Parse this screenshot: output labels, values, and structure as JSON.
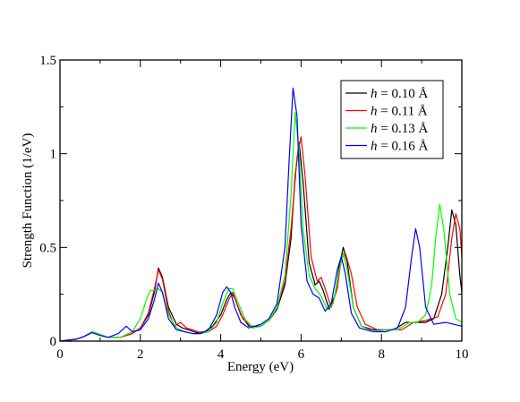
{
  "chart_data": {
    "type": "line",
    "title": "",
    "xlabel": "Energy (eV)",
    "ylabel": "Strength Function (1/eV)",
    "xlim": [
      0,
      10
    ],
    "ylim": [
      0,
      1.5
    ],
    "x_ticks": [
      "0",
      "2",
      "4",
      "6",
      "8",
      "10"
    ],
    "y_ticks": [
      "0",
      "0.5",
      "1",
      "1.5"
    ],
    "grid": false,
    "legend_position": "top-right",
    "series": [
      {
        "name": "h = 0.10 Å",
        "legend_var": "h",
        "legend_rest": " = 0.10 Å",
        "color": "#000000",
        "x": [
          0,
          0.4,
          0.6,
          0.8,
          1.0,
          1.2,
          1.5,
          1.8,
          2.0,
          2.2,
          2.35,
          2.45,
          2.55,
          2.7,
          2.9,
          3.05,
          3.2,
          3.4,
          3.6,
          3.8,
          4.0,
          4.15,
          4.25,
          4.35,
          4.5,
          4.7,
          5.0,
          5.2,
          5.4,
          5.6,
          5.75,
          5.85,
          5.95,
          6.05,
          6.2,
          6.35,
          6.45,
          6.55,
          6.7,
          6.85,
          6.95,
          7.05,
          7.15,
          7.3,
          7.5,
          7.8,
          8.0,
          8.3,
          8.6,
          8.85,
          9.1,
          9.3,
          9.5,
          9.65,
          9.75,
          9.85,
          9.95,
          10.0
        ],
        "y": [
          0.0,
          0.01,
          0.025,
          0.05,
          0.035,
          0.02,
          0.02,
          0.04,
          0.07,
          0.14,
          0.26,
          0.39,
          0.34,
          0.18,
          0.09,
          0.07,
          0.06,
          0.045,
          0.05,
          0.08,
          0.14,
          0.22,
          0.26,
          0.23,
          0.14,
          0.08,
          0.08,
          0.11,
          0.17,
          0.3,
          0.55,
          0.88,
          1.06,
          0.85,
          0.42,
          0.3,
          0.32,
          0.27,
          0.17,
          0.25,
          0.4,
          0.5,
          0.42,
          0.18,
          0.08,
          0.06,
          0.06,
          0.06,
          0.1,
          0.1,
          0.1,
          0.12,
          0.25,
          0.5,
          0.7,
          0.62,
          0.35,
          0.26
        ]
      },
      {
        "name": "h = 0.11 Å",
        "legend_var": "h",
        "legend_rest": " = 0.11 Å",
        "color": "#ff0000",
        "x": [
          0,
          0.4,
          0.6,
          0.8,
          1.0,
          1.2,
          1.5,
          1.8,
          2.0,
          2.2,
          2.35,
          2.45,
          2.55,
          2.7,
          2.85,
          3.0,
          3.15,
          3.3,
          3.5,
          3.7,
          3.9,
          4.05,
          4.2,
          4.3,
          4.4,
          4.55,
          4.8,
          5.0,
          5.2,
          5.4,
          5.6,
          5.75,
          5.9,
          6.0,
          6.1,
          6.25,
          6.4,
          6.5,
          6.6,
          6.75,
          6.9,
          7.0,
          7.1,
          7.25,
          7.4,
          7.6,
          7.9,
          8.2,
          8.5,
          8.8,
          9.1,
          9.4,
          9.6,
          9.75,
          9.85,
          9.95,
          10.0
        ],
        "y": [
          0.0,
          0.01,
          0.025,
          0.05,
          0.035,
          0.02,
          0.02,
          0.04,
          0.07,
          0.15,
          0.28,
          0.38,
          0.33,
          0.16,
          0.08,
          0.1,
          0.07,
          0.06,
          0.045,
          0.05,
          0.08,
          0.14,
          0.22,
          0.26,
          0.2,
          0.12,
          0.07,
          0.08,
          0.11,
          0.18,
          0.32,
          0.6,
          0.98,
          1.09,
          0.88,
          0.45,
          0.32,
          0.34,
          0.28,
          0.18,
          0.28,
          0.44,
          0.47,
          0.36,
          0.18,
          0.09,
          0.06,
          0.06,
          0.06,
          0.1,
          0.11,
          0.13,
          0.25,
          0.55,
          0.68,
          0.6,
          0.45
        ]
      },
      {
        "name": "h = 0.13 Å",
        "legend_var": "h",
        "legend_rest": " = 0.13 Å",
        "color": "#00ff00",
        "x": [
          0,
          0.4,
          0.6,
          0.8,
          1.0,
          1.2,
          1.5,
          1.8,
          2.0,
          2.15,
          2.25,
          2.35,
          2.45,
          2.55,
          2.7,
          2.9,
          3.1,
          3.3,
          3.5,
          3.7,
          3.9,
          4.05,
          4.2,
          4.3,
          4.4,
          4.6,
          4.8,
          5.0,
          5.2,
          5.4,
          5.6,
          5.75,
          5.85,
          5.95,
          6.05,
          6.2,
          6.35,
          6.5,
          6.65,
          6.8,
          6.95,
          7.05,
          7.15,
          7.3,
          7.5,
          7.8,
          8.1,
          8.4,
          8.7,
          8.9,
          9.1,
          9.25,
          9.35,
          9.45,
          9.55,
          9.7,
          9.85,
          10.0
        ],
        "y": [
          0.0,
          0.01,
          0.025,
          0.05,
          0.035,
          0.02,
          0.02,
          0.05,
          0.12,
          0.22,
          0.27,
          0.27,
          0.28,
          0.26,
          0.14,
          0.07,
          0.05,
          0.04,
          0.04,
          0.05,
          0.1,
          0.2,
          0.28,
          0.28,
          0.22,
          0.12,
          0.07,
          0.08,
          0.11,
          0.18,
          0.35,
          0.78,
          1.22,
          1.02,
          0.6,
          0.35,
          0.28,
          0.24,
          0.17,
          0.2,
          0.38,
          0.47,
          0.38,
          0.18,
          0.08,
          0.05,
          0.06,
          0.06,
          0.1,
          0.1,
          0.14,
          0.3,
          0.55,
          0.73,
          0.6,
          0.25,
          0.12,
          0.1
        ]
      },
      {
        "name": "h = 0.16 Å",
        "legend_var": "h",
        "legend_rest": " = 0.16 Å",
        "color": "#0000ff",
        "x": [
          0,
          0.4,
          0.6,
          0.8,
          1.0,
          1.2,
          1.45,
          1.65,
          1.8,
          2.0,
          2.2,
          2.35,
          2.45,
          2.55,
          2.7,
          2.9,
          3.1,
          3.3,
          3.5,
          3.7,
          3.9,
          4.05,
          4.15,
          4.25,
          4.35,
          4.5,
          4.7,
          5.0,
          5.2,
          5.4,
          5.6,
          5.7,
          5.8,
          5.9,
          6.0,
          6.15,
          6.3,
          6.45,
          6.6,
          6.75,
          6.9,
          7.0,
          7.1,
          7.25,
          7.45,
          7.8,
          8.1,
          8.4,
          8.6,
          8.75,
          8.85,
          8.95,
          9.1,
          9.3,
          9.6,
          9.8,
          10.0
        ],
        "y": [
          0.0,
          0.01,
          0.025,
          0.045,
          0.03,
          0.02,
          0.04,
          0.08,
          0.05,
          0.06,
          0.12,
          0.22,
          0.31,
          0.26,
          0.12,
          0.06,
          0.05,
          0.04,
          0.04,
          0.06,
          0.14,
          0.26,
          0.29,
          0.26,
          0.18,
          0.1,
          0.07,
          0.09,
          0.12,
          0.2,
          0.5,
          0.95,
          1.35,
          1.2,
          0.62,
          0.32,
          0.25,
          0.23,
          0.16,
          0.2,
          0.38,
          0.45,
          0.36,
          0.15,
          0.07,
          0.05,
          0.05,
          0.07,
          0.18,
          0.45,
          0.6,
          0.5,
          0.18,
          0.09,
          0.1,
          0.09,
          0.08
        ]
      }
    ]
  }
}
